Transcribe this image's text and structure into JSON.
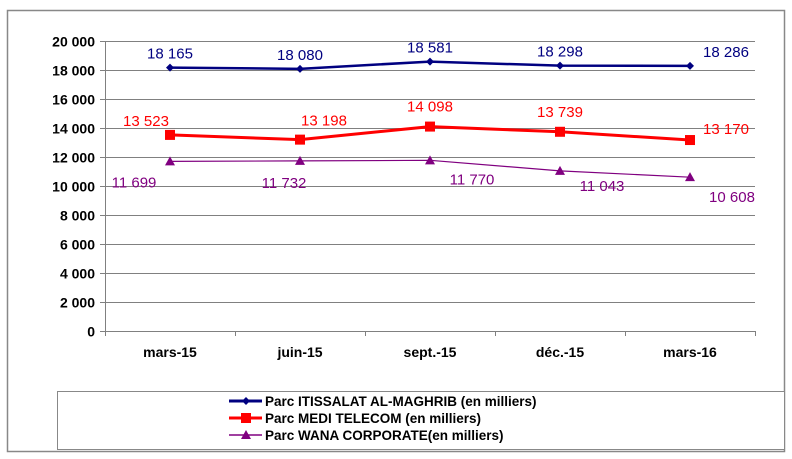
{
  "chart_data": {
    "type": "line",
    "categories": [
      "mars-15",
      "juin-15",
      "sept.-15",
      "déc.-15",
      "mars-16"
    ],
    "ylim": [
      0,
      20000
    ],
    "yticks": [
      0,
      2000,
      4000,
      6000,
      8000,
      10000,
      12000,
      14000,
      16000,
      18000,
      20000
    ],
    "ytick_labels": [
      "0",
      "2 000",
      "4 000",
      "6 000",
      "8 000",
      "10 000",
      "12 000",
      "14 000",
      "16 000",
      "18 000",
      "20 000"
    ],
    "grid": true,
    "legend_position": "bottom",
    "series": [
      {
        "name": "Parc ITISSALAT AL-MAGHRIB (en milliers)",
        "values": [
          18165,
          18080,
          18581,
          18298,
          18286
        ],
        "labels": [
          "18 165",
          "18 080",
          "18 581",
          "18 298",
          "18 286"
        ],
        "color": "#000080",
        "marker": "diamond"
      },
      {
        "name": "Parc MEDI TELECOM (en milliers)",
        "values": [
          13523,
          13198,
          14098,
          13739,
          13170
        ],
        "labels": [
          "13 523",
          "13 198",
          "14 098",
          "13 739",
          "13 170"
        ],
        "color": "#ff0000",
        "marker": "square"
      },
      {
        "name": "Parc WANA CORPORATE(en milliers)",
        "values": [
          11699,
          11732,
          11770,
          11043,
          10608
        ],
        "labels": [
          "11 699",
          "11 732",
          "11 770",
          "11 043",
          "10 608"
        ],
        "color": "#800080",
        "marker": "triangle"
      }
    ]
  }
}
